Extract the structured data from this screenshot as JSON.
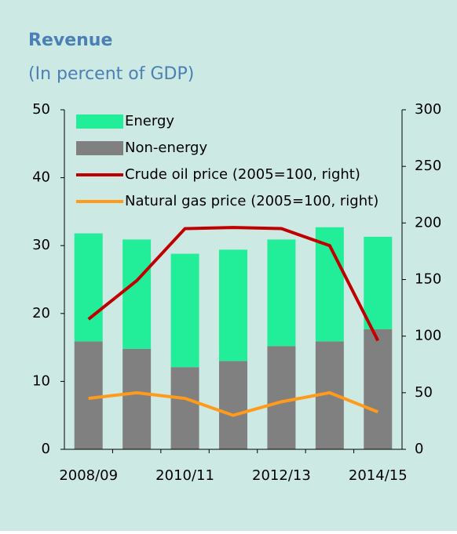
{
  "chart_data": {
    "type": "bar",
    "title": "Revenue",
    "subtitle": "(In percent of GDP)",
    "categories": [
      "2008/09",
      null,
      "2010/11",
      null,
      "2012/13",
      null,
      "2014/15"
    ],
    "series": [
      {
        "name": "Energy",
        "color": "#22ee99",
        "values": [
          15.9,
          16.1,
          16.7,
          16.4,
          15.7,
          16.8,
          13.6
        ],
        "stack": "rev"
      },
      {
        "name": "Non-energy",
        "color": "#808080",
        "values": [
          15.9,
          14.8,
          12.1,
          13.0,
          15.2,
          15.9,
          17.7
        ],
        "stack": "rev"
      },
      {
        "name": "Crude oil price (2005=100, right)",
        "type": "line",
        "axis": "y2",
        "color": "#c00000",
        "values": [
          115,
          149,
          195,
          196,
          195,
          180,
          96
        ]
      },
      {
        "name": "Natural gas price (2005=100, right)",
        "type": "line",
        "axis": "y2",
        "color": "#ff9a1a",
        "values": [
          45,
          50,
          45,
          30,
          42,
          50,
          33
        ]
      }
    ],
    "ylim": [
      0,
      50
    ],
    "yticks": [
      0,
      10,
      20,
      30,
      40,
      50
    ],
    "y2lim": [
      0,
      300
    ],
    "y2ticks": [
      0,
      50,
      100,
      150,
      200,
      250,
      300
    ]
  }
}
